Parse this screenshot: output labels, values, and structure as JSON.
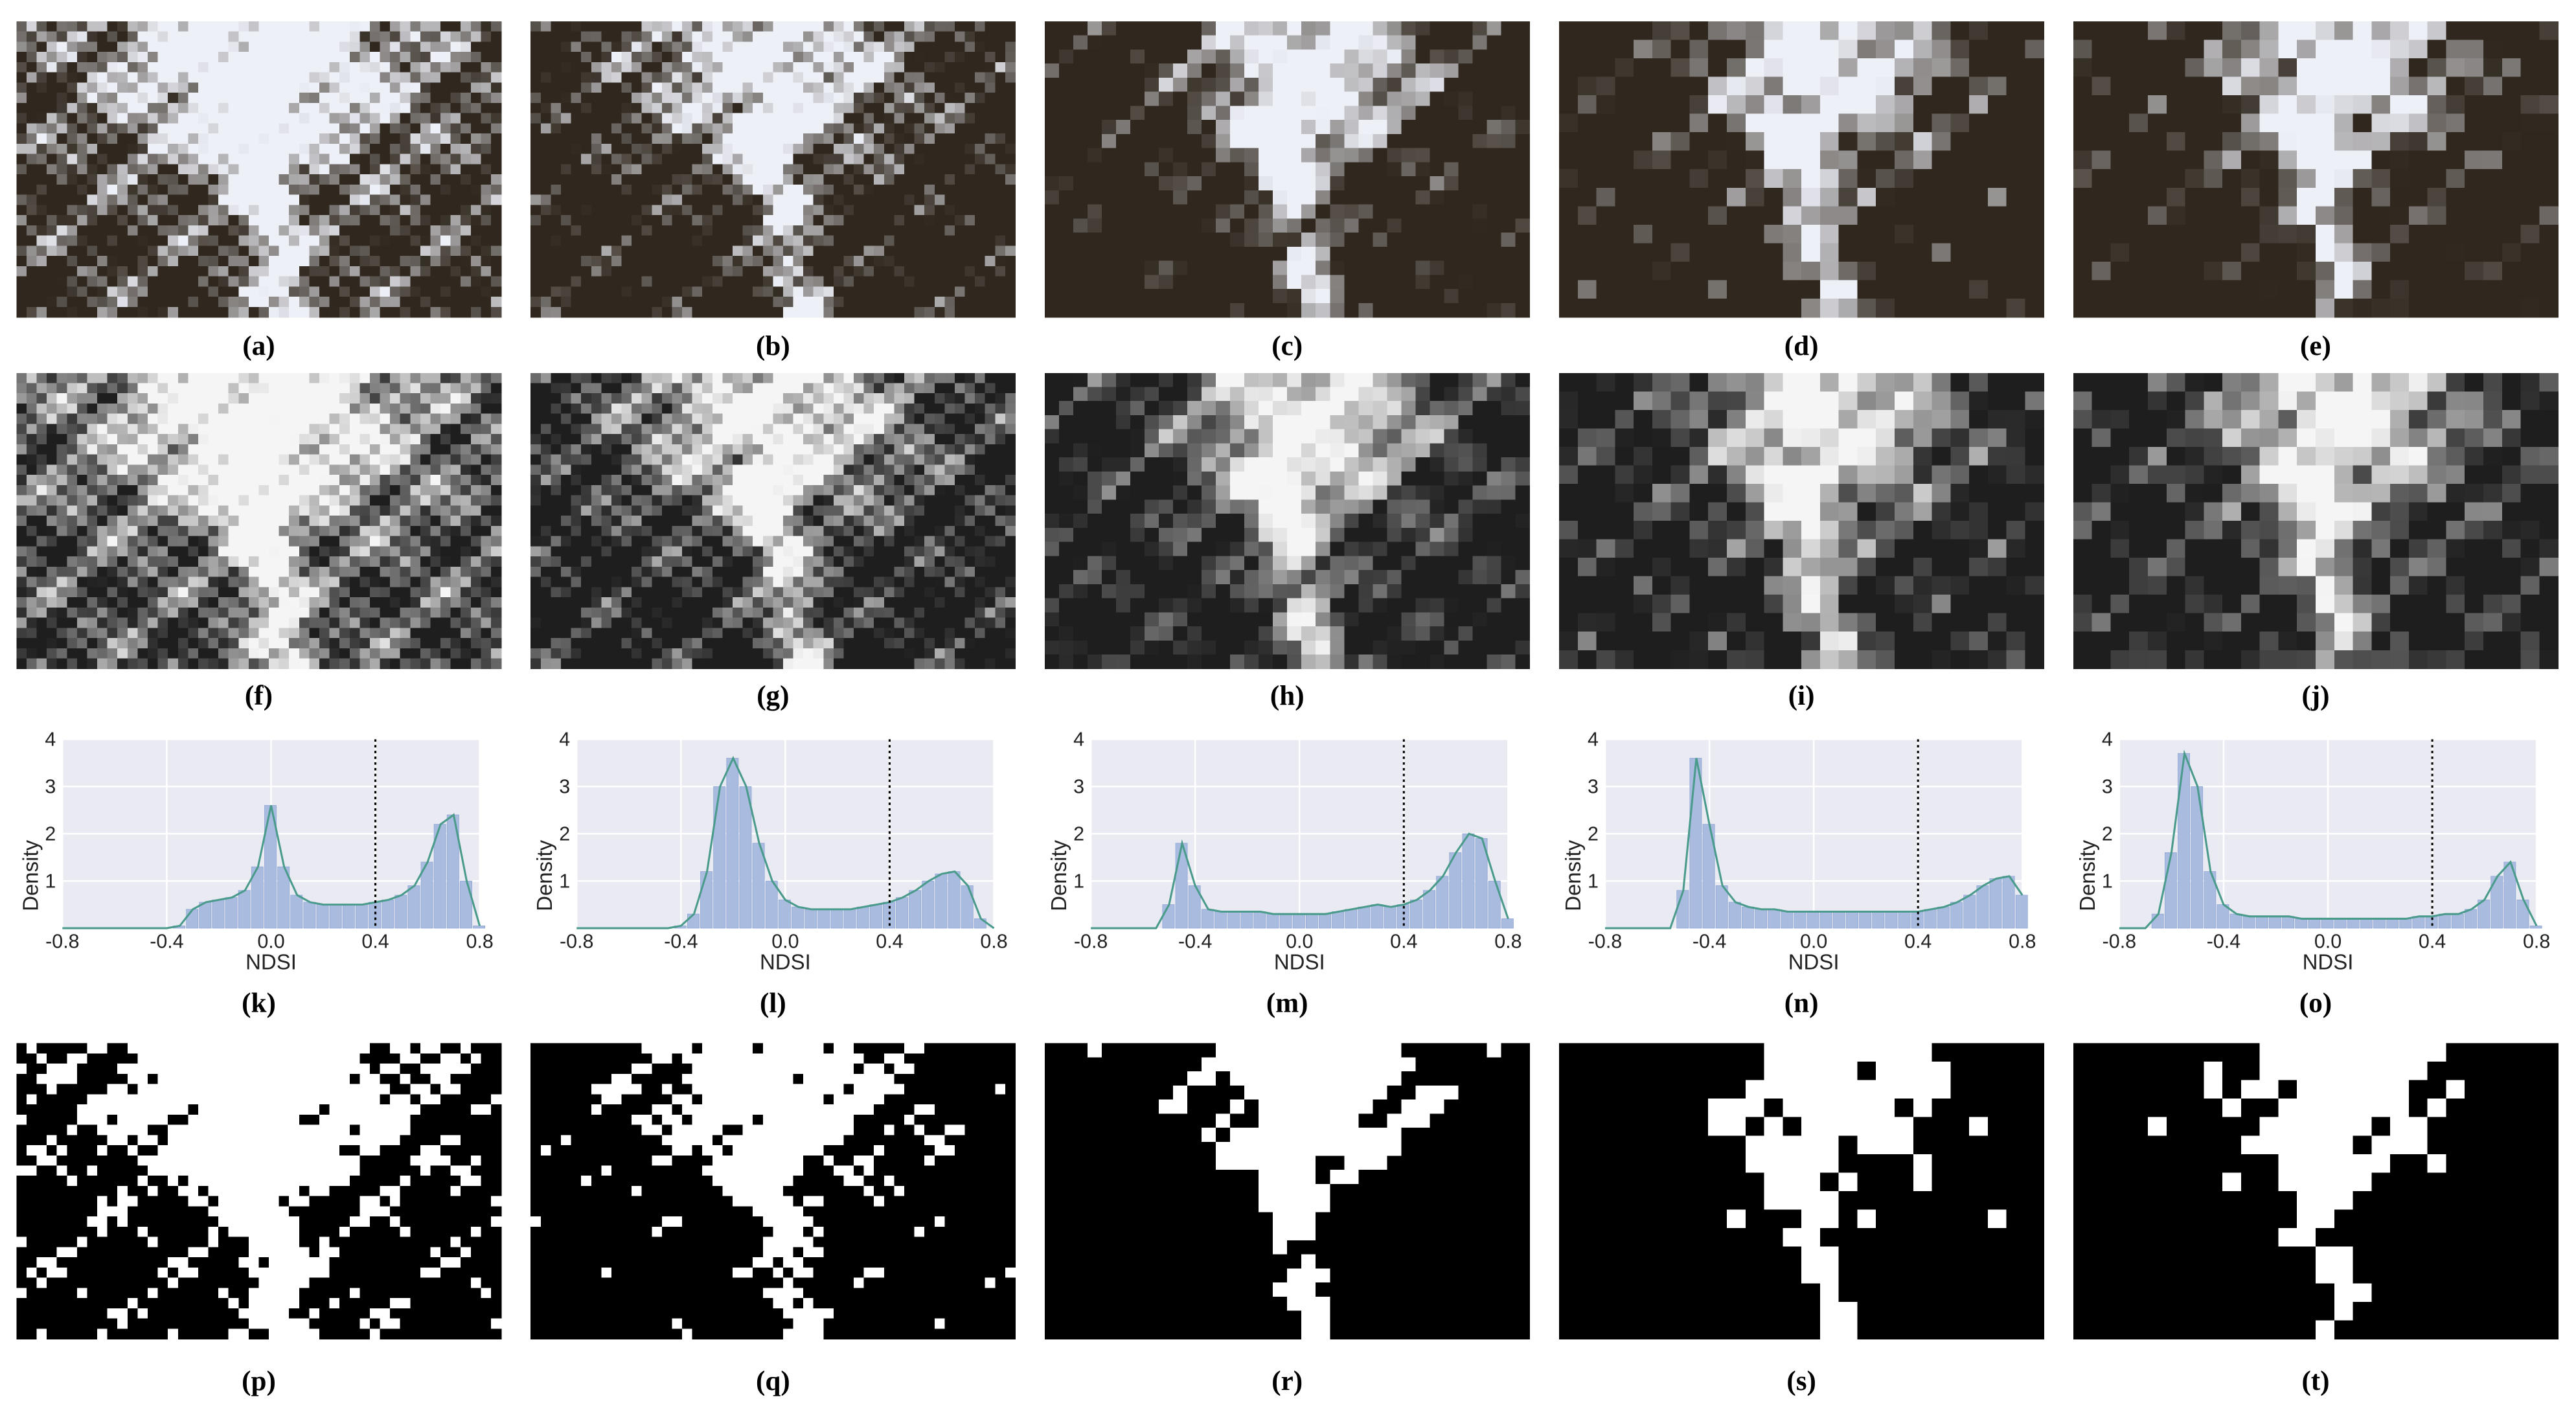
{
  "panels": [
    "(a)",
    "(b)",
    "(c)",
    "(d)",
    "(e)",
    "(f)",
    "(g)",
    "(h)",
    "(i)",
    "(j)",
    "(k)",
    "(l)",
    "(m)",
    "(n)",
    "(o)",
    "(p)",
    "(q)",
    "(r)",
    "(s)",
    "(t)"
  ],
  "chart_data": [
    {
      "type": "density",
      "xlabel": "NDSI",
      "ylabel": "Density",
      "xlim": [
        -0.8,
        0.8
      ],
      "xticks": [
        -0.8,
        -0.4,
        {
          "value": 0,
          "label": "0.0"
        },
        0.4,
        0.8
      ],
      "ylim": [
        0,
        4
      ],
      "yticks": [
        1,
        2,
        3,
        4
      ],
      "grid": true,
      "threshold": 0.4,
      "color": "#a9bce0",
      "line_color": "#4a9b8c",
      "x": [
        -0.8,
        -0.75,
        -0.7,
        -0.65,
        -0.6,
        -0.55,
        -0.5,
        -0.45,
        -0.4,
        -0.35,
        -0.3,
        -0.25,
        -0.2,
        -0.15,
        -0.1,
        -0.05,
        0,
        0.05,
        0.1,
        0.15,
        0.2,
        0.25,
        0.3,
        0.35,
        0.4,
        0.45,
        0.5,
        0.55,
        0.6,
        0.65,
        0.7,
        0.75,
        0.8
      ],
      "values": [
        0,
        0,
        0,
        0,
        0,
        0,
        0,
        0,
        0,
        0.05,
        0.4,
        0.55,
        0.6,
        0.65,
        0.8,
        1.3,
        2.6,
        1.3,
        0.7,
        0.55,
        0.5,
        0.5,
        0.5,
        0.5,
        0.55,
        0.6,
        0.7,
        0.9,
        1.4,
        2.2,
        2.4,
        1.0,
        0.05
      ]
    },
    {
      "type": "density",
      "xlabel": "NDSI",
      "ylabel": "Density",
      "xlim": [
        -0.8,
        0.8
      ],
      "xticks": [
        -0.8,
        -0.4,
        {
          "value": 0,
          "label": "0.0"
        },
        0.4,
        0.8
      ],
      "ylim": [
        0,
        4
      ],
      "yticks": [
        1,
        2,
        3,
        4
      ],
      "grid": true,
      "threshold": 0.4,
      "color": "#a9bce0",
      "line_color": "#4a9b8c",
      "x": [
        -0.8,
        -0.75,
        -0.7,
        -0.65,
        -0.6,
        -0.55,
        -0.5,
        -0.45,
        -0.4,
        -0.35,
        -0.3,
        -0.25,
        -0.2,
        -0.15,
        -0.1,
        -0.05,
        0,
        0.05,
        0.1,
        0.15,
        0.2,
        0.25,
        0.3,
        0.35,
        0.4,
        0.45,
        0.5,
        0.55,
        0.6,
        0.65,
        0.7,
        0.75,
        0.8
      ],
      "values": [
        0,
        0,
        0,
        0,
        0,
        0,
        0,
        0,
        0.05,
        0.3,
        1.2,
        3.0,
        3.6,
        3.0,
        1.8,
        1.0,
        0.6,
        0.45,
        0.4,
        0.4,
        0.4,
        0.4,
        0.45,
        0.5,
        0.55,
        0.65,
        0.8,
        1.0,
        1.15,
        1.2,
        0.9,
        0.2,
        0
      ]
    },
    {
      "type": "density",
      "xlabel": "NDSI",
      "ylabel": "Density",
      "xlim": [
        -0.8,
        0.8
      ],
      "xticks": [
        -0.8,
        -0.4,
        {
          "value": 0,
          "label": "0.0"
        },
        0.4,
        0.8
      ],
      "ylim": [
        0,
        4
      ],
      "yticks": [
        1,
        2,
        3,
        4
      ],
      "grid": true,
      "threshold": 0.4,
      "color": "#a9bce0",
      "line_color": "#4a9b8c",
      "x": [
        -0.8,
        -0.75,
        -0.7,
        -0.65,
        -0.6,
        -0.55,
        -0.5,
        -0.45,
        -0.4,
        -0.35,
        -0.3,
        -0.25,
        -0.2,
        -0.15,
        -0.1,
        -0.05,
        0,
        0.05,
        0.1,
        0.15,
        0.2,
        0.25,
        0.3,
        0.35,
        0.4,
        0.45,
        0.5,
        0.55,
        0.6,
        0.65,
        0.7,
        0.75,
        0.8
      ],
      "values": [
        0,
        0,
        0,
        0,
        0,
        0,
        0.5,
        1.8,
        0.9,
        0.4,
        0.35,
        0.35,
        0.35,
        0.35,
        0.3,
        0.3,
        0.3,
        0.3,
        0.3,
        0.35,
        0.4,
        0.45,
        0.5,
        0.45,
        0.5,
        0.6,
        0.8,
        1.1,
        1.6,
        2.0,
        1.9,
        1.0,
        0.2
      ]
    },
    {
      "type": "density",
      "xlabel": "NDSI",
      "ylabel": "Density",
      "xlim": [
        -0.8,
        0.8
      ],
      "xticks": [
        -0.8,
        -0.4,
        {
          "value": 0,
          "label": "0.0"
        },
        0.4,
        0.8
      ],
      "ylim": [
        0,
        4
      ],
      "yticks": [
        1,
        2,
        3,
        4
      ],
      "grid": true,
      "threshold": 0.4,
      "color": "#a9bce0",
      "line_color": "#4a9b8c",
      "x": [
        -0.8,
        -0.75,
        -0.7,
        -0.65,
        -0.6,
        -0.55,
        -0.5,
        -0.45,
        -0.4,
        -0.35,
        -0.3,
        -0.25,
        -0.2,
        -0.15,
        -0.1,
        -0.05,
        0,
        0.05,
        0.1,
        0.15,
        0.2,
        0.25,
        0.3,
        0.35,
        0.4,
        0.45,
        0.5,
        0.55,
        0.6,
        0.65,
        0.7,
        0.75,
        0.8
      ],
      "values": [
        0,
        0,
        0,
        0,
        0,
        0,
        0.8,
        3.6,
        2.2,
        0.9,
        0.55,
        0.45,
        0.4,
        0.4,
        0.35,
        0.35,
        0.35,
        0.35,
        0.35,
        0.35,
        0.35,
        0.35,
        0.35,
        0.35,
        0.35,
        0.4,
        0.45,
        0.55,
        0.7,
        0.9,
        1.05,
        1.1,
        0.7
      ]
    },
    {
      "type": "density",
      "xlabel": "NDSI",
      "ylabel": "Density",
      "xlim": [
        -0.8,
        0.8
      ],
      "xticks": [
        -0.8,
        -0.4,
        {
          "value": 0,
          "label": "0.0"
        },
        0.4,
        0.8
      ],
      "ylim": [
        0,
        4
      ],
      "yticks": [
        1,
        2,
        3,
        4
      ],
      "grid": true,
      "threshold": 0.4,
      "color": "#a9bce0",
      "line_color": "#4a9b8c",
      "x": [
        -0.8,
        -0.75,
        -0.7,
        -0.65,
        -0.6,
        -0.55,
        -0.5,
        -0.45,
        -0.4,
        -0.35,
        -0.3,
        -0.25,
        -0.2,
        -0.15,
        -0.1,
        -0.05,
        0,
        0.05,
        0.1,
        0.15,
        0.2,
        0.25,
        0.3,
        0.35,
        0.4,
        0.45,
        0.5,
        0.55,
        0.6,
        0.65,
        0.7,
        0.75,
        0.8
      ],
      "values": [
        0,
        0,
        0,
        0.3,
        1.6,
        3.7,
        3.0,
        1.2,
        0.5,
        0.3,
        0.25,
        0.25,
        0.25,
        0.25,
        0.2,
        0.2,
        0.2,
        0.2,
        0.2,
        0.2,
        0.2,
        0.2,
        0.2,
        0.25,
        0.25,
        0.3,
        0.3,
        0.4,
        0.6,
        1.1,
        1.4,
        0.6,
        0.05
      ]
    }
  ]
}
